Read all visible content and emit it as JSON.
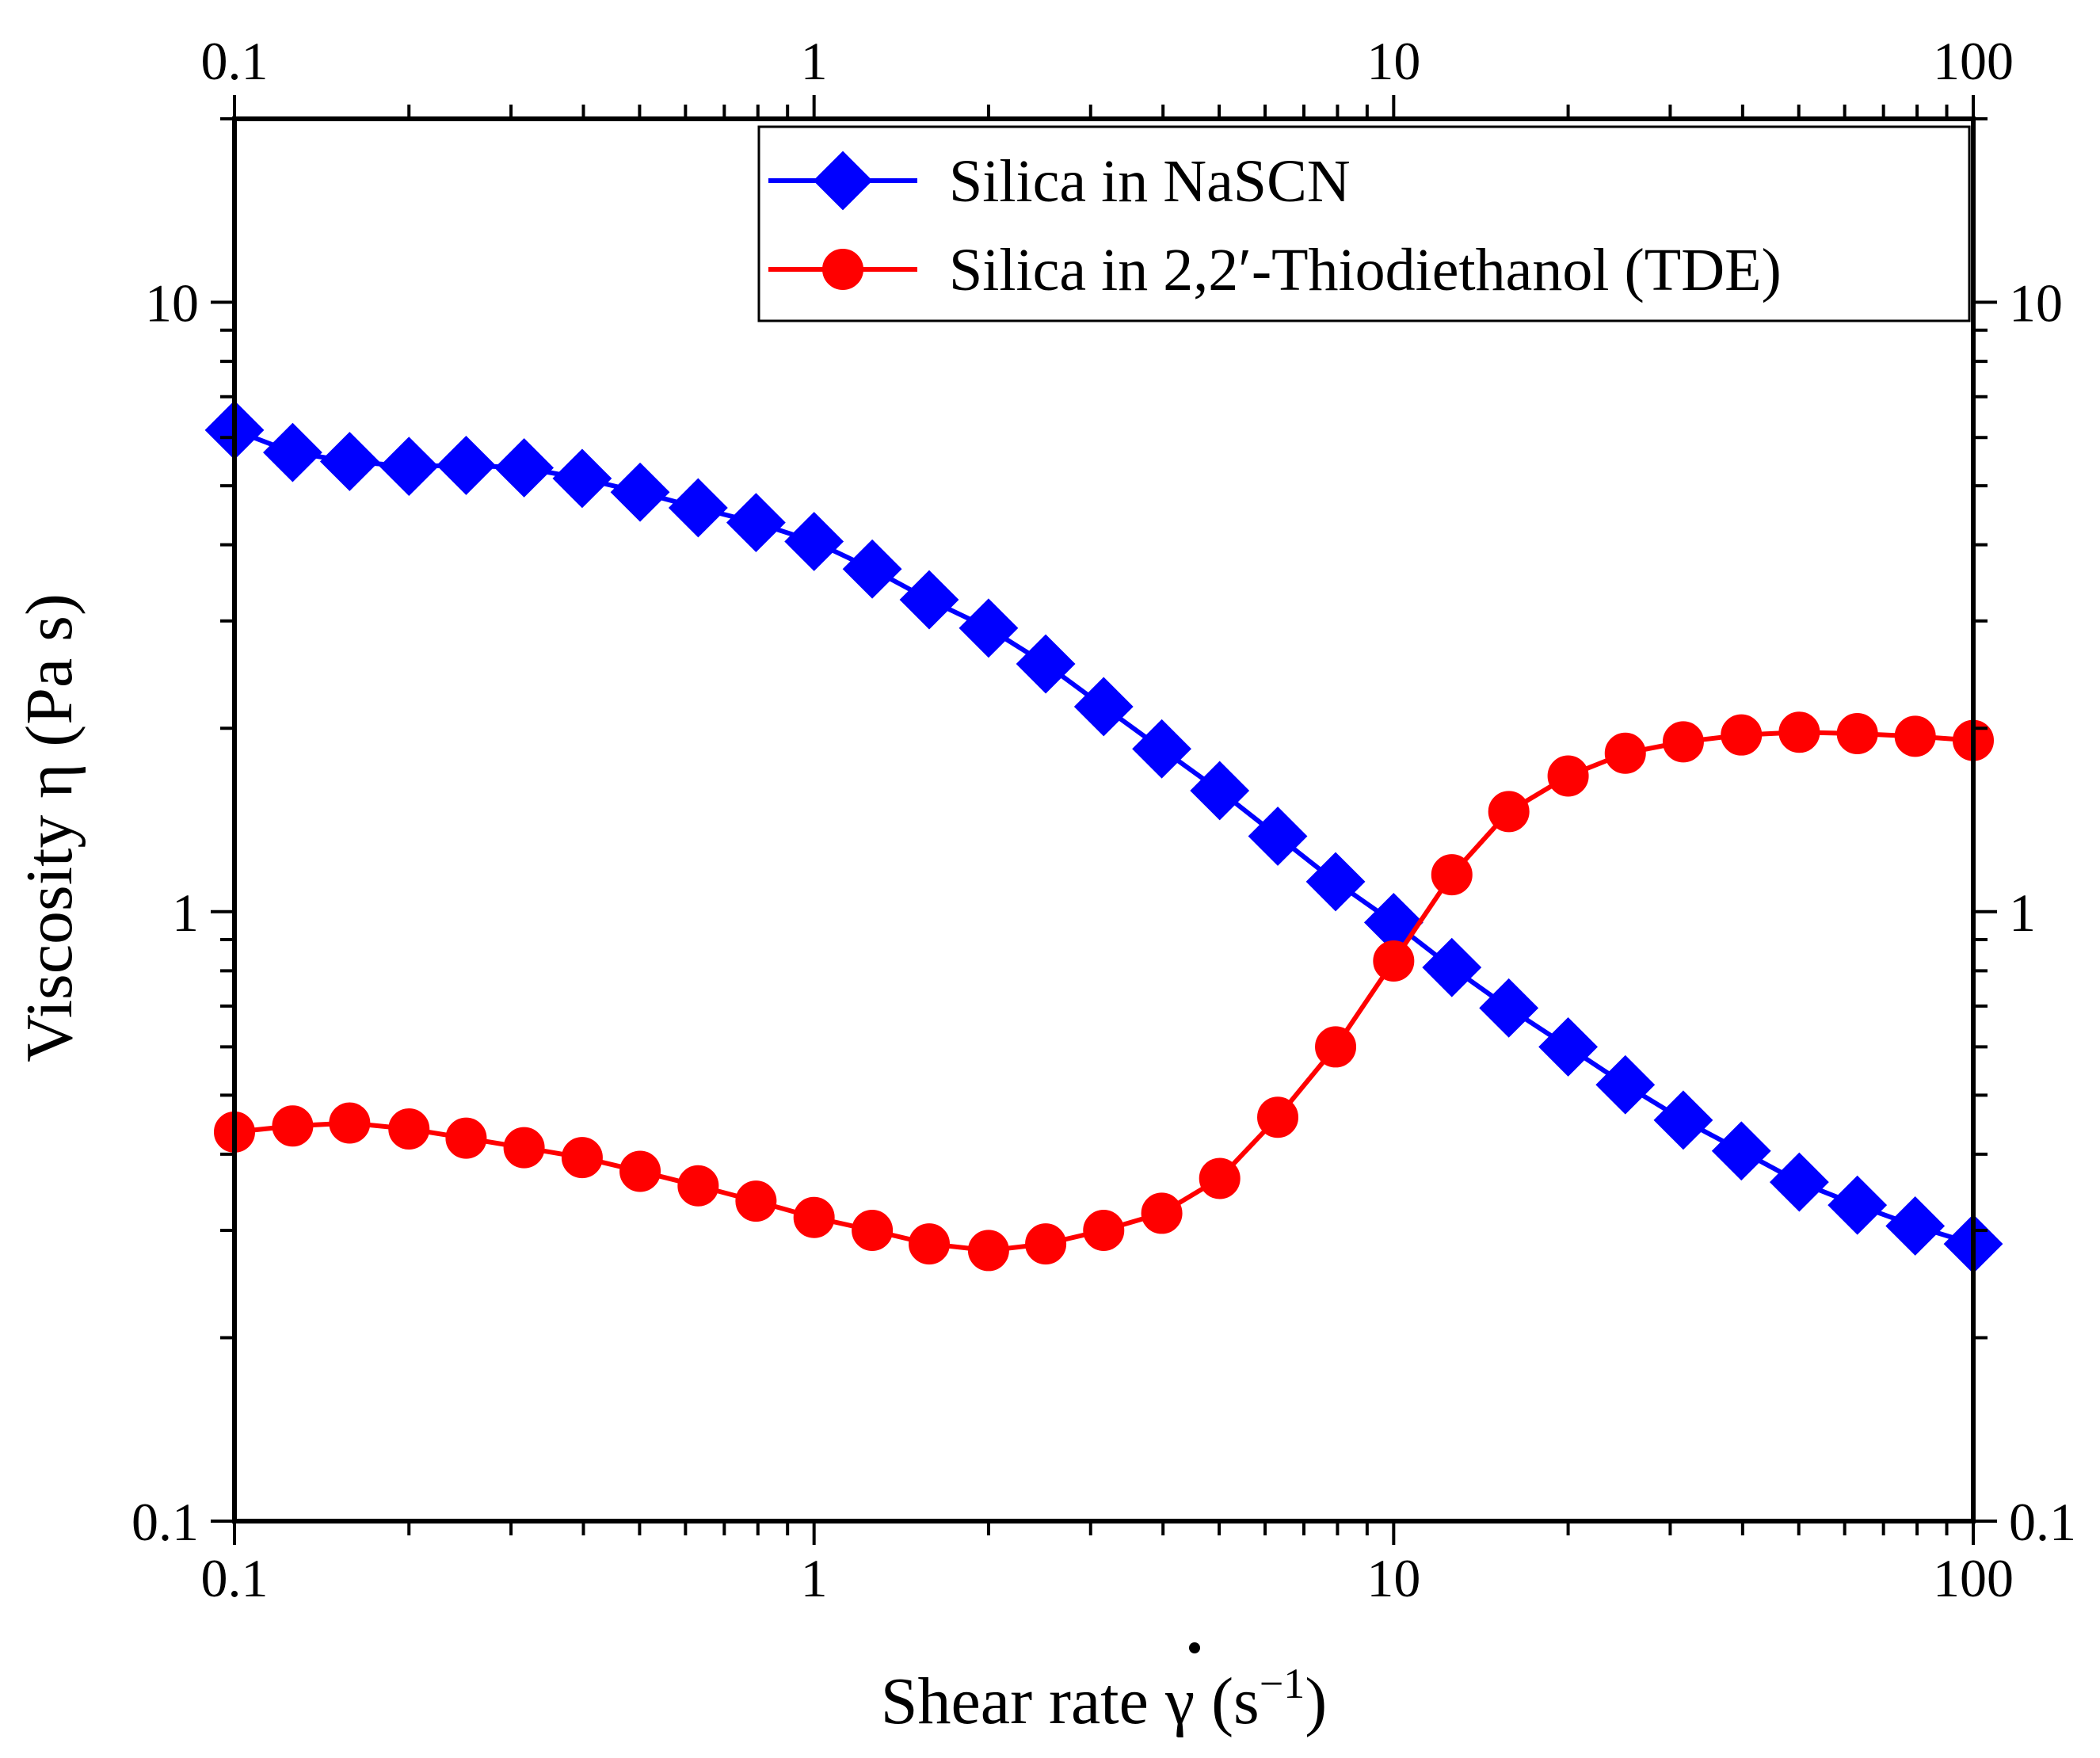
{
  "chart_data": {
    "type": "line",
    "title": "",
    "xlabel": "Shear rate γ̇ (s⁻¹)",
    "xlabel_parts": {
      "prefix": "Shear rate ",
      "symbol": "γ",
      "open": " (s",
      "sup": "−1",
      "close": ")"
    },
    "ylabel": "Viscosity η (Pa s)",
    "xscale": "log",
    "yscale": "log",
    "xlim": [
      0.1,
      100
    ],
    "ylim": [
      0.1,
      20
    ],
    "x_tick_labels": [
      "0.1",
      "1",
      "10",
      "100"
    ],
    "y_tick_labels": [
      "0.1",
      "1",
      "10"
    ],
    "legend_position": "top-right",
    "x": [
      0.1,
      0.126,
      0.158,
      0.2,
      0.251,
      0.316,
      0.398,
      0.501,
      0.631,
      0.794,
      1.0,
      1.26,
      1.58,
      2.0,
      2.51,
      3.16,
      3.98,
      5.01,
      6.31,
      7.94,
      10.0,
      12.6,
      15.8,
      20.0,
      25.1,
      31.6,
      39.8,
      50.1,
      63.1,
      79.4,
      100.0
    ],
    "series": [
      {
        "name": "Silica in NaSCN",
        "color": "#0000ff",
        "marker": "diamond",
        "values": [
          6.17,
          5.67,
          5.48,
          5.38,
          5.4,
          5.35,
          5.14,
          4.88,
          4.6,
          4.35,
          4.05,
          3.65,
          3.25,
          2.92,
          2.55,
          2.17,
          1.85,
          1.58,
          1.33,
          1.12,
          0.96,
          0.81,
          0.695,
          0.6,
          0.52,
          0.455,
          0.405,
          0.36,
          0.33,
          0.305,
          0.285
        ]
      },
      {
        "name": "Silica in 2,2′-Thiodiethanol (TDE)",
        "color": "#ff0000",
        "marker": "circle",
        "values": [
          0.435,
          0.445,
          0.45,
          0.44,
          0.425,
          0.41,
          0.395,
          0.375,
          0.355,
          0.335,
          0.315,
          0.3,
          0.285,
          0.278,
          0.285,
          0.3,
          0.32,
          0.365,
          0.46,
          0.6,
          0.83,
          1.15,
          1.46,
          1.67,
          1.82,
          1.9,
          1.95,
          1.97,
          1.96,
          1.94,
          1.91
        ]
      }
    ]
  }
}
